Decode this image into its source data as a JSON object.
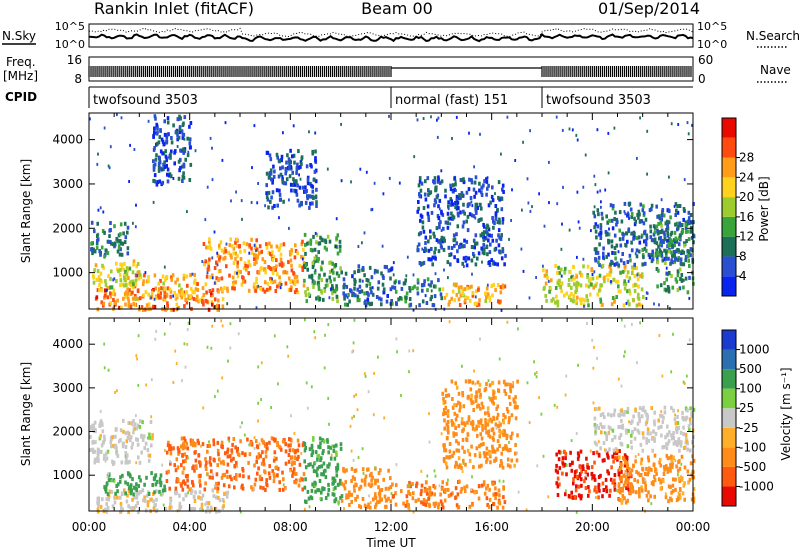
{
  "header": {
    "title": "Rankin Inlet (fitACF)",
    "beam": "Beam 00",
    "date": "01/Sep/2014"
  },
  "noise_panel": {
    "left_label": "N.Sky",
    "left_ticks": [
      "10^5",
      "10^0"
    ],
    "right_ticks": [
      "10^5",
      "10^0"
    ],
    "right_label": "N.Search",
    "right_legend_style": "dotted"
  },
  "freq_panel": {
    "left_label_line1": "Freq.",
    "left_label_line2": "[MHz]",
    "left_ticks": [
      "16",
      "8"
    ],
    "right_ticks": [
      "60",
      "0"
    ],
    "right_label": "Nave",
    "right_legend_style": "dotted"
  },
  "cpid_panel": {
    "label": "CPID",
    "segments": [
      {
        "start_ut": 0.0,
        "name": "twofsound 3503"
      },
      {
        "start_ut": 12.0,
        "name": "normal (fast) 151"
      },
      {
        "start_ut": 18.0,
        "name": "twofsound 3503"
      }
    ]
  },
  "x_axis": {
    "label": "Time UT",
    "range_ut": [
      0,
      24
    ],
    "tick_labels": [
      "00:00",
      "04:00",
      "08:00",
      "12:00",
      "16:00",
      "20:00",
      "00:00"
    ],
    "tick_values_ut": [
      0,
      4,
      8,
      12,
      16,
      20,
      24
    ]
  },
  "chart_data": [
    {
      "type": "heatmap",
      "name": "power-panel",
      "ylabel": "Slant Range [km]",
      "ylim": [
        180,
        4600
      ],
      "y_ticks": [
        1000,
        2000,
        3000,
        4000
      ],
      "colorbar": {
        "label": "Power [dB]",
        "levels": [
          0,
          4,
          8,
          12,
          16,
          20,
          24,
          28,
          32
        ],
        "tick_labels": [
          "4",
          "8",
          "12",
          "16",
          "20",
          "24",
          "28"
        ],
        "colors": [
          "#0a24f0",
          "#2a4fd0",
          "#1e6f58",
          "#39a43a",
          "#9ccc2e",
          "#ffd21e",
          "#ff9c18",
          "#ff4a10",
          "#e80a00"
        ]
      },
      "clusters": [
        {
          "ut": [
            0.2,
            5.5
          ],
          "range": [
            200,
            700
          ],
          "level": 28
        },
        {
          "ut": [
            1.2,
            4.5
          ],
          "range": [
            400,
            1000
          ],
          "level": 24
        },
        {
          "ut": [
            0.0,
            2.0
          ],
          "range": [
            700,
            1300
          ],
          "level": 20
        },
        {
          "ut": [
            0.0,
            1.5
          ],
          "range": [
            1400,
            2200
          ],
          "level": 10
        },
        {
          "ut": [
            4.5,
            8.5
          ],
          "range": [
            600,
            1800
          ],
          "level": 26
        },
        {
          "ut": [
            8.5,
            10.0
          ],
          "range": [
            400,
            1900
          ],
          "level": 14
        },
        {
          "ut": [
            10.0,
            12.0
          ],
          "range": [
            300,
            1200
          ],
          "level": 8
        },
        {
          "ut": [
            12.0,
            14.0
          ],
          "range": [
            300,
            900
          ],
          "level": 10
        },
        {
          "ut": [
            14.0,
            16.5
          ],
          "range": [
            300,
            800
          ],
          "level": 24
        },
        {
          "ut": [
            13.0,
            16.5
          ],
          "range": [
            1200,
            3200
          ],
          "level": 6
        },
        {
          "ut": [
            18.0,
            22.0
          ],
          "range": [
            300,
            1200
          ],
          "level": 20
        },
        {
          "ut": [
            20.0,
            24.0
          ],
          "range": [
            1200,
            2600
          ],
          "level": 8
        },
        {
          "ut": [
            22.5,
            24.0
          ],
          "range": [
            600,
            2200
          ],
          "level": 12
        },
        {
          "ut": [
            2.5,
            4.0
          ],
          "range": [
            3000,
            4600
          ],
          "level": 6
        },
        {
          "ut": [
            7.0,
            9.0
          ],
          "range": [
            2500,
            3800
          ],
          "level": 6
        }
      ]
    },
    {
      "type": "heatmap",
      "name": "velocity-panel",
      "ylabel": "Slant Range [km]",
      "ylim": [
        180,
        4600
      ],
      "y_ticks": [
        1000,
        2000,
        3000,
        4000
      ],
      "colorbar": {
        "label": "Velocity [m s⁻¹]",
        "levels": [
          -2000,
          -1000,
          -500,
          -100,
          -25,
          25,
          100,
          500,
          1000,
          2000
        ],
        "tick_labels": [
          "-1000",
          "-500",
          "-100",
          "-25",
          "25",
          "100",
          "500",
          "1000"
        ],
        "colors": [
          "#e80a00",
          "#ff5a10",
          "#ff8c18",
          "#ffae2a",
          "#c8c8c8",
          "#7ad040",
          "#3aa050",
          "#2a70b0",
          "#1a3ad0"
        ]
      },
      "clusters": [
        {
          "ut": [
            0.2,
            5.5
          ],
          "range": [
            200,
            700
          ],
          "value": -10
        },
        {
          "ut": [
            0.5,
            3.0
          ],
          "range": [
            600,
            1100
          ],
          "value": 300
        },
        {
          "ut": [
            0.0,
            2.5
          ],
          "range": [
            1300,
            2300
          ],
          "value": 0
        },
        {
          "ut": [
            3.0,
            8.5
          ],
          "range": [
            700,
            1900
          ],
          "value": -600
        },
        {
          "ut": [
            8.5,
            10.0
          ],
          "range": [
            400,
            1900
          ],
          "value": 200
        },
        {
          "ut": [
            10.0,
            12.0
          ],
          "range": [
            300,
            1200
          ],
          "value": -300
        },
        {
          "ut": [
            12.0,
            16.5
          ],
          "range": [
            300,
            900
          ],
          "value": -400
        },
        {
          "ut": [
            14.0,
            17.0
          ],
          "range": [
            1200,
            3200
          ],
          "value": -200
        },
        {
          "ut": [
            18.5,
            21.5
          ],
          "range": [
            500,
            1600
          ],
          "value": -1200
        },
        {
          "ut": [
            21.0,
            24.0
          ],
          "range": [
            400,
            1500
          ],
          "value": -200
        },
        {
          "ut": [
            20.0,
            24.0
          ],
          "range": [
            1600,
            2600
          ],
          "value": 0
        }
      ]
    }
  ]
}
